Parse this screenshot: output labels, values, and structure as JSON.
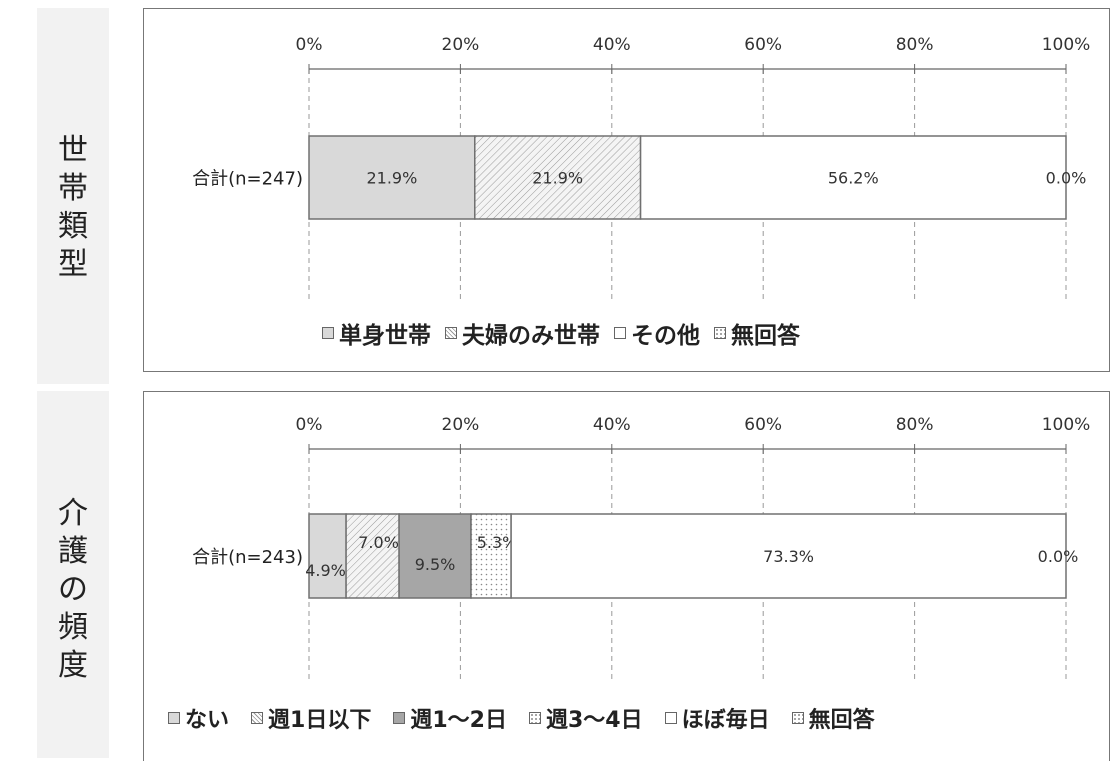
{
  "side_labels": {
    "top": [
      "世",
      "帯",
      "類",
      "型"
    ],
    "bottom": [
      "介",
      "護",
      "の",
      "頻",
      "度"
    ]
  },
  "chart_data": [
    {
      "type": "bar",
      "orientation": "horizontal-stacked-100",
      "axis_ticks": [
        "0%",
        "20%",
        "40%",
        "60%",
        "80%",
        "100%"
      ],
      "xlim": [
        0,
        100
      ],
      "grid": true,
      "legend_position": "bottom",
      "categories": [
        "合計(n=247)"
      ],
      "series": [
        {
          "name": "単身世帯",
          "values": [
            21.9
          ],
          "label": "21.9%",
          "color": "#d9d9d9",
          "pattern": "solid"
        },
        {
          "name": "夫婦のみ世帯",
          "values": [
            21.9
          ],
          "label": "21.9%",
          "color": "#f2f2f2",
          "pattern": "hatch"
        },
        {
          "name": "その他",
          "values": [
            56.2
          ],
          "label": "56.2%",
          "color": "#ffffff",
          "pattern": "solid"
        },
        {
          "name": "無回答",
          "values": [
            0.0
          ],
          "label": "0.0%",
          "color": "#ffffff",
          "pattern": "dots"
        }
      ]
    },
    {
      "type": "bar",
      "orientation": "horizontal-stacked-100",
      "axis_ticks": [
        "0%",
        "20%",
        "40%",
        "60%",
        "80%",
        "100%"
      ],
      "xlim": [
        0,
        100
      ],
      "grid": true,
      "legend_position": "bottom",
      "categories": [
        "合計(n=243)"
      ],
      "series": [
        {
          "name": "ない",
          "values": [
            4.9
          ],
          "label": "4.9%",
          "color": "#d9d9d9",
          "pattern": "solid"
        },
        {
          "name": "週1日以下",
          "values": [
            7.0
          ],
          "label": "7.0%",
          "color": "#f2f2f2",
          "pattern": "hatch"
        },
        {
          "name": "週1～2日",
          "values": [
            9.5
          ],
          "label": "9.5%",
          "color": "#a6a6a6",
          "pattern": "solid"
        },
        {
          "name": "週3～4日",
          "values": [
            5.3
          ],
          "label": "5.3%",
          "color": "#ffffff",
          "pattern": "dots"
        },
        {
          "name": "ほぼ毎日",
          "values": [
            73.3
          ],
          "label": "73.3%",
          "color": "#ffffff",
          "pattern": "solid"
        },
        {
          "name": "無回答",
          "values": [
            0.0
          ],
          "label": "0.0%",
          "color": "#ffffff",
          "pattern": "sparse-dots"
        }
      ]
    }
  ]
}
